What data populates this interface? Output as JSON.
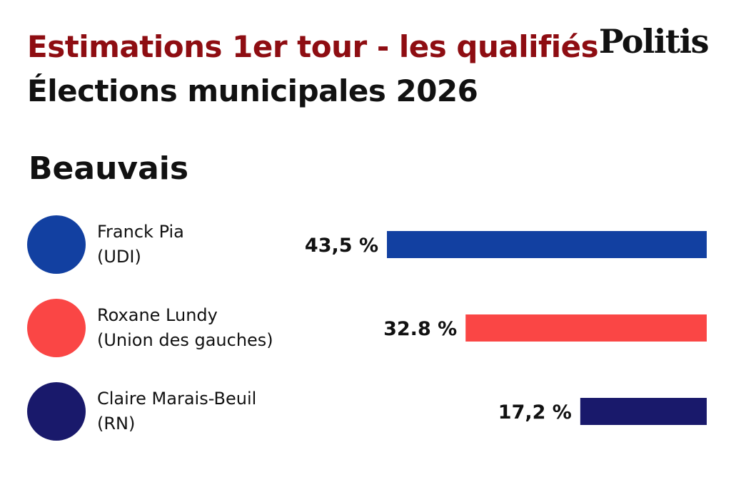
{
  "header": {
    "title": "Estimations 1er tour - les qualifiés",
    "subtitle": "Élections municipales 2026",
    "logo": "Politis",
    "title_color": "#8e0d12",
    "subtitle_color": "#111111"
  },
  "city": "Beauvais",
  "chart_data": {
    "type": "bar",
    "orientation": "horizontal",
    "title": "Estimations 1er tour - les qualifiés",
    "subtitle": "Élections municipales 2026",
    "group": "Beauvais",
    "unit": "%",
    "xlim": [
      0,
      43.5
    ],
    "categories": [
      "Franck Pia",
      "Roxane Lundy",
      "Claire Marais-Beuil"
    ],
    "parties": [
      "(UDI)",
      "(Union des gauches)",
      "(RN)"
    ],
    "values": [
      43.5,
      32.8,
      17.2
    ],
    "value_labels": [
      "43,5 %",
      "32.8 %",
      "17,2 %"
    ],
    "colors": [
      "#1240a1",
      "#fa4645",
      "#19196b"
    ]
  }
}
